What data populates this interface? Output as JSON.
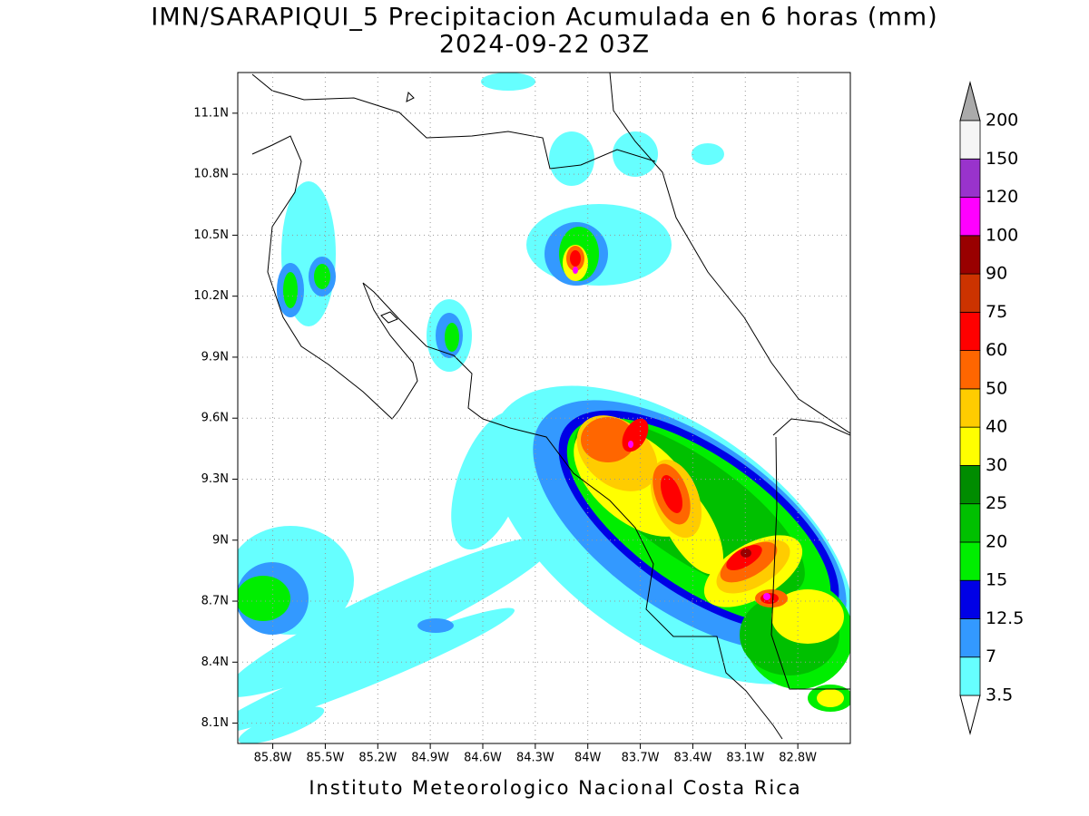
{
  "map": {
    "title": "IMN/SARAPIQUI_5 Precipitacion Acumulada en 6 horas (mm)",
    "subtitle": "2024-09-22 03Z",
    "footer": "Instituto Meteorologico Nacional Costa Rica",
    "xlim": [
      -86.0,
      -82.5
    ],
    "ylim": [
      8.0,
      11.3
    ],
    "xticks": [
      {
        "value": -85.8,
        "label": "85.8W"
      },
      {
        "value": -85.5,
        "label": "85.5W"
      },
      {
        "value": -85.2,
        "label": "85.2W"
      },
      {
        "value": -84.9,
        "label": "84.9W"
      },
      {
        "value": -84.6,
        "label": "84.6W"
      },
      {
        "value": -84.3,
        "label": "84.3W"
      },
      {
        "value": -84.0,
        "label": "84W"
      },
      {
        "value": -83.7,
        "label": "83.7W"
      },
      {
        "value": -83.4,
        "label": "83.4W"
      },
      {
        "value": -83.1,
        "label": "83.1W"
      },
      {
        "value": -82.8,
        "label": "82.8W"
      }
    ],
    "yticks": [
      {
        "value": 8.1,
        "label": "8.1N"
      },
      {
        "value": 8.4,
        "label": "8.4N"
      },
      {
        "value": 8.7,
        "label": "8.7N"
      },
      {
        "value": 9.0,
        "label": "9N"
      },
      {
        "value": 9.3,
        "label": "9.3N"
      },
      {
        "value": 9.6,
        "label": "9.6N"
      },
      {
        "value": 9.9,
        "label": "9.9N"
      },
      {
        "value": 10.2,
        "label": "10.2N"
      },
      {
        "value": 10.5,
        "label": "10.5N"
      },
      {
        "value": 10.8,
        "label": "10.8N"
      },
      {
        "value": 11.1,
        "label": "11.1N"
      }
    ],
    "grid": true,
    "colorbar": {
      "levels": [
        3.5,
        7,
        12.5,
        15,
        20,
        25,
        30,
        40,
        50,
        60,
        75,
        90,
        100,
        120,
        150,
        200
      ],
      "colors": [
        "#66ffff",
        "#3399ff",
        "#0000e6",
        "#00ee00",
        "#00c000",
        "#008c00",
        "#ffff00",
        "#ffcc00",
        "#ff6600",
        "#ff0000",
        "#cc3300",
        "#990000",
        "#ff00ff",
        "#9933cc",
        "#f5f5f5"
      ],
      "under_color": "#ffffff",
      "over_color": "#aaaaaa"
    }
  }
}
